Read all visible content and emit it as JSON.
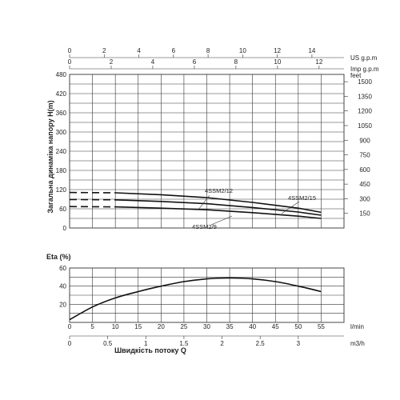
{
  "chart_data": [
    {
      "type": "line",
      "panel": "head",
      "ylabel": "Загальна динаміка напору H(m)",
      "ylim": [
        0,
        480
      ],
      "yticks": [
        60,
        120,
        180,
        240,
        300,
        360,
        420,
        480
      ],
      "yticks_zero": "0",
      "y2label": "feet",
      "y2ticks": [
        150,
        300,
        450,
        600,
        750,
        900,
        1050,
        1200,
        1350,
        1500
      ],
      "top_axes": [
        {
          "unit": "US g.p.m",
          "ticks": [
            0,
            2,
            4,
            6,
            8,
            10,
            12,
            14
          ],
          "flow_per_unit": 3.785
        },
        {
          "unit": "Imp g.p.m",
          "ticks": [
            0,
            2,
            4,
            6,
            8,
            10,
            12
          ],
          "flow_per_unit": 4.546
        }
      ],
      "series": [
        {
          "name": "4SSM2/15",
          "x": [
            0,
            10,
            20,
            30,
            40,
            50,
            55
          ],
          "y": [
            111,
            110,
            104,
            95,
            80,
            62,
            49
          ],
          "dashed_until": 10
        },
        {
          "name": "4SSM2/12",
          "x": [
            0,
            10,
            20,
            30,
            40,
            50,
            55
          ],
          "y": [
            89,
            88,
            83,
            76,
            64,
            50,
            40
          ],
          "dashed_until": 10
        },
        {
          "name": "4SSM2/9",
          "x": [
            0,
            10,
            20,
            30,
            40,
            50,
            55
          ],
          "y": [
            67,
            66,
            62,
            57,
            48,
            37,
            30
          ],
          "dashed_until": 10
        }
      ]
    },
    {
      "type": "line",
      "panel": "efficiency",
      "ylabel": "Eta (%)",
      "ylim": [
        0,
        60
      ],
      "yticks": [
        20,
        40,
        60
      ],
      "series": [
        {
          "x": [
            0,
            5,
            10,
            15,
            20,
            25,
            30,
            35,
            40,
            45,
            50,
            55
          ],
          "y": [
            3,
            17,
            27,
            34,
            40,
            45,
            48,
            49,
            48,
            45,
            40,
            34
          ]
        }
      ],
      "xlabel": "Швидкість потоку Q",
      "x_axes": [
        {
          "unit": "l/min",
          "ticks": [
            0,
            5,
            10,
            15,
            20,
            25,
            30,
            35,
            40,
            45,
            50,
            55
          ]
        },
        {
          "unit": "m3/h",
          "ticks": [
            "0",
            "0.5",
            "1",
            "1.5",
            "2",
            "2.5",
            "3"
          ],
          "values": [
            0,
            0.5,
            1,
            1.5,
            2,
            2.5,
            3
          ],
          "flow_per_unit": 16.6667
        }
      ]
    }
  ]
}
